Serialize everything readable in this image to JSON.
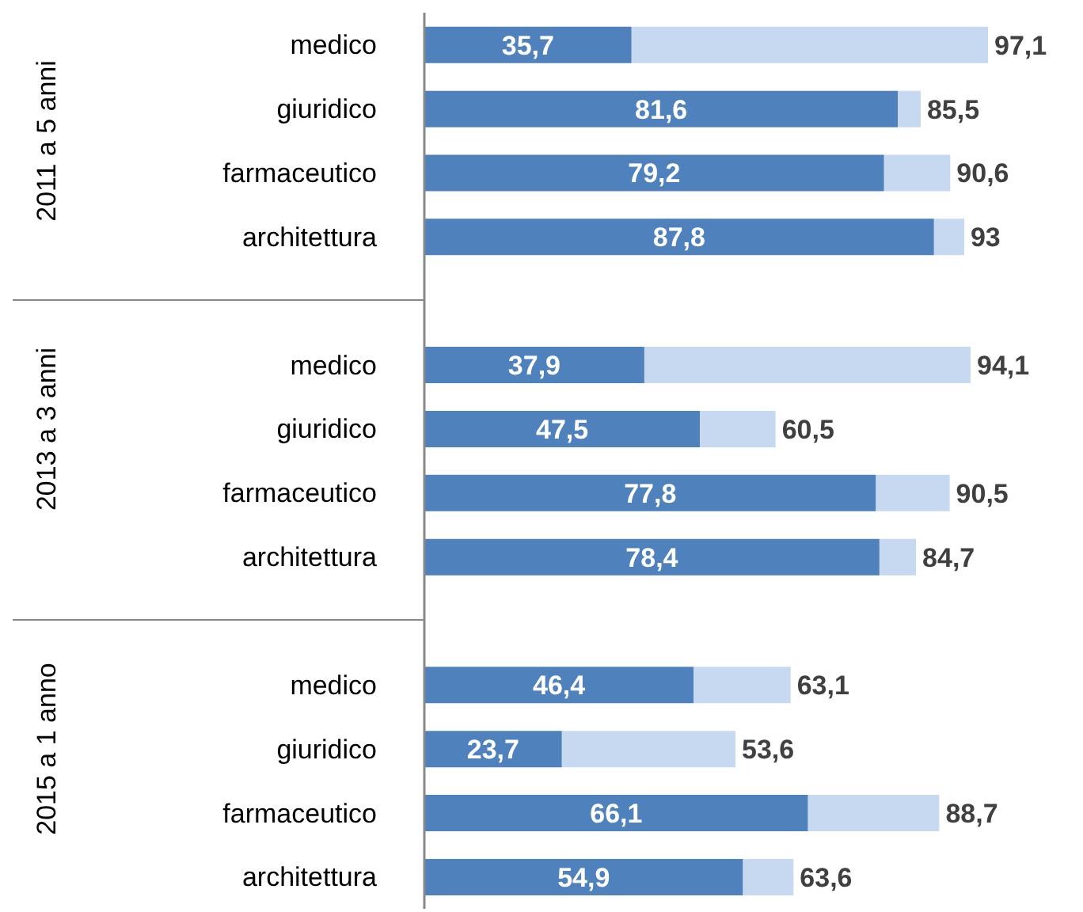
{
  "chart_data": {
    "type": "bar",
    "orientation": "horizontal",
    "stacked": true,
    "categories": [
      "medico",
      "giuridico",
      "farmaceutico",
      "architettura",
      null,
      "medico",
      "giuridico",
      "farmaceutico",
      "architettura",
      null,
      "medico",
      "giuridico",
      "farmaceutico",
      "architettura"
    ],
    "annotations": [
      "2011 a 5 anni",
      "2013 a 3 anni",
      "2015 a 1 anno"
    ],
    "series": [
      {
        "color": "#4f81bd",
        "values": [
          35.7,
          81.6,
          79.2,
          87.8,
          null,
          37.9,
          47.5,
          77.8,
          78.4,
          null,
          46.4,
          23.7,
          66.1,
          54.9
        ],
        "value_labels": [
          "35,7",
          "81,6",
          "79,2",
          "87,8",
          null,
          "37,9",
          "47,5",
          "77,8",
          "78,4",
          null,
          "46,4",
          "23,7",
          "66,1",
          "54,9"
        ]
      },
      {
        "color": "#c6d9f0",
        "values": [
          61.4,
          3.9,
          11.4,
          5.2,
          null,
          56.2,
          13.0,
          12.7,
          6.3,
          null,
          16.7,
          29.9,
          22.6,
          8.7
        ]
      }
    ],
    "totals": [
      "97,1",
      "85,5",
      "90,6",
      "93",
      null,
      "94,1",
      "60,5",
      "90,5",
      "84,7",
      null,
      "63,1",
      "53,6",
      "88,7",
      "63,6"
    ]
  }
}
